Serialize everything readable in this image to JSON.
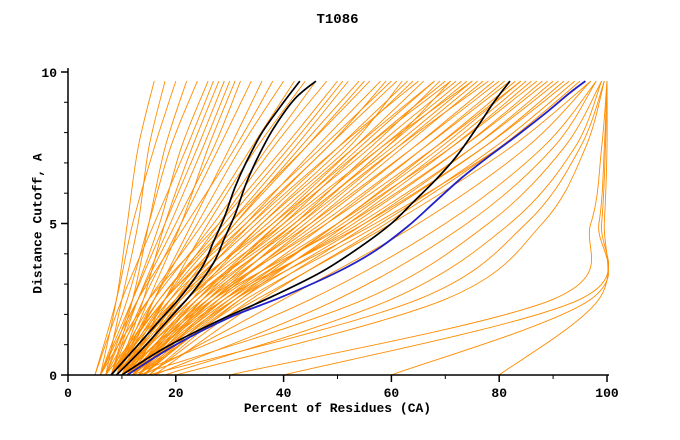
{
  "title": "T1086",
  "chart_data": {
    "type": "line",
    "title": "T1086",
    "xlabel": "Percent of Residues (CA)",
    "ylabel": "Distance Cutoff, A",
    "xlim": [
      0,
      100
    ],
    "ylim": [
      0,
      10
    ],
    "x_ticks": [
      0,
      20,
      40,
      60,
      80,
      100
    ],
    "y_ticks": [
      0,
      5,
      10
    ],
    "x_minor_step": 10,
    "y_minor_step": 1,
    "legend": "none",
    "grid": false,
    "colors": {
      "model": "#ff8c00",
      "reference": "#000000",
      "highlight": "#2121c8",
      "axis": "#000000"
    },
    "y_grid": [
      0,
      2.5,
      5,
      7.5,
      9.7
    ],
    "orange_curves": [
      [
        6,
        9,
        11,
        13,
        16
      ],
      [
        7,
        10,
        13,
        15,
        18
      ],
      [
        5,
        9,
        12,
        16,
        20
      ],
      [
        8,
        12,
        15,
        18,
        22
      ],
      [
        6,
        11,
        15,
        19,
        24
      ],
      [
        7,
        12,
        17,
        21,
        26
      ],
      [
        9,
        14,
        18,
        23,
        28
      ],
      [
        5,
        10,
        16,
        22,
        27
      ],
      [
        8,
        13,
        19,
        25,
        30
      ],
      [
        6,
        12,
        18,
        24,
        29
      ],
      [
        9,
        15,
        21,
        26,
        31
      ],
      [
        7,
        13,
        20,
        27,
        32
      ],
      [
        8,
        14,
        21,
        28,
        34
      ],
      [
        10,
        16,
        23,
        30,
        36
      ],
      [
        6,
        13,
        22,
        31,
        38
      ],
      [
        9,
        16,
        24,
        32,
        40
      ],
      [
        7,
        15,
        25,
        34,
        42
      ],
      [
        11,
        18,
        26,
        35,
        44
      ],
      [
        8,
        16,
        27,
        37,
        46
      ],
      [
        10,
        18,
        28,
        38,
        48
      ],
      [
        6,
        15,
        28,
        40,
        50
      ],
      [
        9,
        18,
        30,
        42,
        52
      ],
      [
        12,
        20,
        31,
        43,
        54
      ],
      [
        8,
        17,
        30,
        44,
        56
      ],
      [
        10,
        20,
        33,
        46,
        58
      ],
      [
        7,
        18,
        32,
        47,
        60
      ],
      [
        11,
        21,
        34,
        48,
        61
      ],
      [
        9,
        20,
        35,
        50,
        63
      ],
      [
        12,
        23,
        36,
        51,
        64
      ],
      [
        8,
        19,
        34,
        50,
        65
      ],
      [
        10,
        22,
        38,
        53,
        66
      ],
      [
        13,
        25,
        39,
        54,
        68
      ],
      [
        9,
        21,
        37,
        53,
        68
      ],
      [
        11,
        24,
        40,
        55,
        70
      ],
      [
        8,
        20,
        38,
        55,
        71
      ],
      [
        12,
        25,
        42,
        57,
        72
      ],
      [
        10,
        23,
        41,
        58,
        73
      ],
      [
        13,
        27,
        43,
        59,
        74
      ],
      [
        9,
        22,
        40,
        58,
        75
      ],
      [
        11,
        26,
        44,
        61,
        76
      ],
      [
        14,
        28,
        45,
        62,
        77
      ],
      [
        10,
        24,
        43,
        61,
        78
      ],
      [
        12,
        27,
        46,
        64,
        79
      ],
      [
        9,
        25,
        45,
        64,
        80
      ],
      [
        13,
        29,
        48,
        66,
        81
      ],
      [
        11,
        27,
        47,
        66,
        82
      ],
      [
        14,
        30,
        50,
        68,
        83
      ],
      [
        10,
        26,
        48,
        68,
        84
      ],
      [
        12,
        29,
        51,
        70,
        85
      ],
      [
        15,
        32,
        52,
        71,
        86
      ],
      [
        11,
        28,
        50,
        71,
        87
      ],
      [
        13,
        31,
        53,
        73,
        88
      ],
      [
        10,
        27,
        52,
        73,
        89
      ],
      [
        14,
        32,
        55,
        75,
        90
      ],
      [
        12,
        30,
        54,
        75,
        91
      ],
      [
        15,
        34,
        56,
        77,
        92
      ],
      [
        11,
        29,
        55,
        77,
        93
      ],
      [
        13,
        33,
        58,
        79,
        94
      ],
      [
        16,
        36,
        59,
        80,
        95
      ],
      [
        12,
        31,
        57,
        80,
        96
      ],
      [
        10,
        35,
        60,
        82,
        97
      ],
      [
        14,
        40,
        65,
        85,
        97
      ],
      [
        12,
        45,
        70,
        88,
        98
      ],
      [
        16,
        50,
        74,
        90,
        98
      ],
      [
        13,
        55,
        78,
        92,
        99
      ],
      [
        18,
        60,
        82,
        94,
        99
      ],
      [
        15,
        65,
        85,
        95,
        99.5
      ],
      [
        20,
        70,
        88,
        96,
        99.5
      ],
      [
        30,
        90,
        97,
        99,
        100
      ],
      [
        40,
        95,
        98.5,
        99.5,
        100
      ],
      [
        60,
        97,
        99,
        99.7,
        100
      ],
      [
        80,
        98.5,
        99.5,
        100,
        100
      ],
      [
        9,
        17,
        29,
        41,
        51
      ],
      [
        10,
        19,
        31,
        44,
        55
      ],
      [
        11,
        22,
        36,
        52,
        62
      ],
      [
        12,
        24,
        39,
        56,
        69
      ],
      [
        8,
        18,
        33,
        48,
        59
      ],
      [
        13,
        26,
        42,
        60,
        75
      ],
      [
        9,
        23,
        42,
        59,
        71
      ],
      [
        14,
        31,
        50,
        69,
        84
      ]
    ],
    "black_curves": [
      [
        [
          8,
          0
        ],
        [
          12,
          0.8
        ],
        [
          17,
          1.8
        ],
        [
          21,
          2.6
        ],
        [
          25,
          3.6
        ],
        [
          27,
          4.4
        ],
        [
          29,
          5.2
        ],
        [
          31,
          6.2
        ],
        [
          33,
          7.0
        ],
        [
          36,
          8.0
        ],
        [
          40,
          9.0
        ],
        [
          43,
          9.7
        ]
      ],
      [
        [
          9,
          0
        ],
        [
          14,
          0.9
        ],
        [
          19,
          1.9
        ],
        [
          23,
          2.7
        ],
        [
          27,
          3.7
        ],
        [
          29,
          4.5
        ],
        [
          31,
          5.3
        ],
        [
          33,
          6.3
        ],
        [
          35,
          7.1
        ],
        [
          38,
          8.1
        ],
        [
          42,
          9.1
        ],
        [
          46,
          9.7
        ]
      ],
      [
        [
          10,
          0
        ],
        [
          18,
          0.9
        ],
        [
          28,
          1.8
        ],
        [
          38,
          2.6
        ],
        [
          47,
          3.4
        ],
        [
          54,
          4.2
        ],
        [
          60,
          5.0
        ],
        [
          64,
          5.7
        ],
        [
          68,
          6.4
        ],
        [
          72,
          7.2
        ],
        [
          76,
          8.2
        ],
        [
          79,
          9.0
        ],
        [
          82,
          9.7
        ]
      ]
    ],
    "blue_curves": [
      [
        [
          11,
          0
        ],
        [
          20,
          1.0
        ],
        [
          30,
          1.9
        ],
        [
          40,
          2.6
        ],
        [
          50,
          3.4
        ],
        [
          57,
          4.1
        ],
        [
          63,
          4.9
        ],
        [
          68,
          5.7
        ],
        [
          73,
          6.5
        ],
        [
          78,
          7.2
        ],
        [
          84,
          8.0
        ],
        [
          89,
          8.7
        ],
        [
          93,
          9.3
        ],
        [
          96,
          9.7
        ]
      ]
    ]
  }
}
